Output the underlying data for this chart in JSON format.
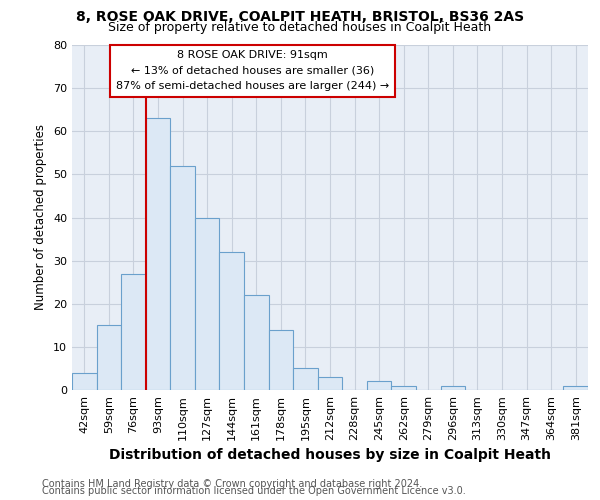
{
  "title1": "8, ROSE OAK DRIVE, COALPIT HEATH, BRISTOL, BS36 2AS",
  "title2": "Size of property relative to detached houses in Coalpit Heath",
  "xlabel": "Distribution of detached houses by size in Coalpit Heath",
  "ylabel": "Number of detached properties",
  "footer1": "Contains HM Land Registry data © Crown copyright and database right 2024.",
  "footer2": "Contains public sector information licensed under the Open Government Licence v3.0.",
  "annotation_title": "8 ROSE OAK DRIVE: 91sqm",
  "annotation_line1": "← 13% of detached houses are smaller (36)",
  "annotation_line2": "87% of semi-detached houses are larger (244) →",
  "bar_labels": [
    "42sqm",
    "59sqm",
    "76sqm",
    "93sqm",
    "110sqm",
    "127sqm",
    "144sqm",
    "161sqm",
    "178sqm",
    "195sqm",
    "212sqm",
    "228sqm",
    "245sqm",
    "262sqm",
    "279sqm",
    "296sqm",
    "313sqm",
    "330sqm",
    "347sqm",
    "364sqm",
    "381sqm"
  ],
  "bar_values": [
    4,
    15,
    27,
    63,
    52,
    40,
    32,
    22,
    14,
    5,
    3,
    0,
    2,
    1,
    0,
    1,
    0,
    0,
    0,
    0,
    1
  ],
  "bar_color": "#dce8f5",
  "bar_edge_color": "#6aa0cc",
  "bar_width": 1.0,
  "redline_x": 2.5,
  "ylim": [
    0,
    80
  ],
  "yticks": [
    0,
    10,
    20,
    30,
    40,
    50,
    60,
    70,
    80
  ],
  "grid_color": "#c8d0dc",
  "bg_color": "#e8eef6",
  "annotation_box_color": "#ffffff",
  "annotation_box_edge": "#cc0000",
  "redline_color": "#cc0000",
  "title1_fontsize": 10,
  "title2_fontsize": 9,
  "xlabel_fontsize": 10,
  "ylabel_fontsize": 8.5,
  "tick_fontsize": 8,
  "ann_fontsize": 8,
  "footer_fontsize": 7
}
